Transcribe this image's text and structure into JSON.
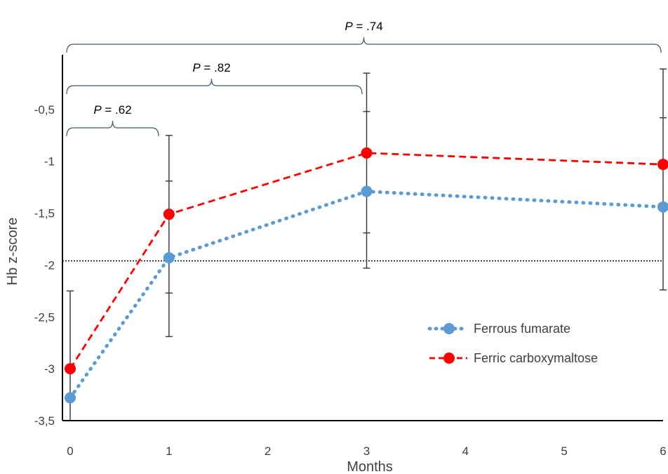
{
  "chart_data": {
    "type": "line",
    "xlabel": "Months",
    "ylabel": "Hb z-score",
    "x_ticks": [
      0,
      1,
      2,
      3,
      4,
      5,
      6
    ],
    "y_ticks": [
      -3.5,
      -3,
      -2.5,
      -2,
      -1.5,
      -1,
      -0.5
    ],
    "y_tick_labels": [
      "-3,5",
      "-3",
      "-2,5",
      "-2",
      "-1,5",
      "-1",
      "-0,5"
    ],
    "xlim": [
      0,
      6
    ],
    "ylim": [
      -3.5,
      0
    ],
    "reference_line": -1.96,
    "series": [
      {
        "name": "Ferrous fumarate",
        "color": "#5b9bd5",
        "style": "dotted",
        "x": [
          0,
          1,
          3,
          6
        ],
        "y": [
          -3.28,
          -1.93,
          -1.29,
          -1.44
        ]
      },
      {
        "name": "Ferric carboxymaltose",
        "color": "#ff0000",
        "style": "dashed",
        "x": [
          0,
          1,
          3,
          6
        ],
        "y": [
          -3.0,
          -1.51,
          -0.92,
          -1.03
        ]
      }
    ],
    "error_bars": [
      {
        "x": 0,
        "lower": -3.5,
        "upper": -2.25,
        "ticks": [
          -2.25
        ]
      },
      {
        "x": 1,
        "lower": -2.69,
        "upper": -0.75,
        "ticks": [
          -0.75,
          -1.19,
          -2.27,
          -2.69
        ]
      },
      {
        "x": 3,
        "lower": -2.03,
        "upper": -0.15,
        "ticks": [
          -0.15,
          -0.52,
          -1.69,
          -2.03
        ]
      },
      {
        "x": 6,
        "lower": -2.24,
        "upper": -0.11,
        "ticks": [
          -0.11,
          -0.58,
          -2.24
        ]
      }
    ],
    "annotations": [
      {
        "label_italic": "P",
        "label_rest": " = .62",
        "x_from": 0,
        "x_to": 0.9
      },
      {
        "label_italic": "P",
        "label_rest": " = .82",
        "x_from": 0,
        "x_to": 3
      },
      {
        "label_italic": "P",
        "label_rest": " = .74",
        "x_from": 0,
        "x_to": 6
      }
    ],
    "legend_position": "bottom-right"
  }
}
